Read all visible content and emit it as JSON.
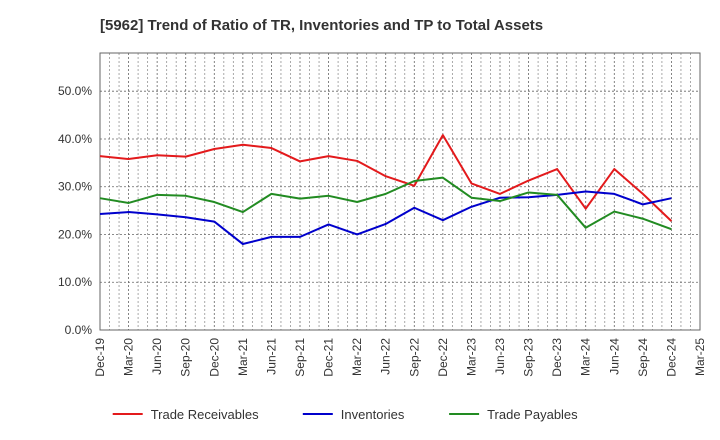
{
  "chart_data": {
    "type": "line",
    "title": "[5962]  Trend of Ratio of TR, Inventories and TP to Total Assets",
    "xlabel": "",
    "ylabel": "",
    "ylim": [
      0,
      0.58
    ],
    "yticks": [
      0,
      0.1,
      0.2,
      0.3,
      0.4,
      0.5
    ],
    "ytick_labels": [
      "0.0%",
      "10.0%",
      "20.0%",
      "30.0%",
      "40.0%",
      "50.0%"
    ],
    "categories": [
      "Dec-19",
      "Mar-20",
      "Jun-20",
      "Sep-20",
      "Dec-20",
      "Mar-21",
      "Jun-21",
      "Sep-21",
      "Dec-21",
      "Mar-22",
      "Jun-22",
      "Sep-22",
      "Dec-22",
      "Mar-23",
      "Jun-23",
      "Sep-23",
      "Dec-23",
      "Mar-24",
      "Jun-24",
      "Sep-24",
      "Dec-24",
      "Mar-25"
    ],
    "grid": true,
    "legend_position": "bottom",
    "series": [
      {
        "name": "Trade Receivables",
        "color": "#e31a1c",
        "values": [
          0.364,
          0.358,
          0.366,
          0.363,
          0.379,
          0.388,
          0.381,
          0.353,
          0.364,
          0.354,
          0.322,
          0.302,
          0.408,
          0.307,
          0.285,
          0.313,
          0.337,
          0.254,
          0.337,
          0.285,
          0.228,
          null
        ]
      },
      {
        "name": "Inventories",
        "color": "#0000cc",
        "values": [
          0.243,
          0.247,
          0.242,
          0.236,
          0.227,
          0.18,
          0.195,
          0.195,
          0.221,
          0.2,
          0.222,
          0.256,
          0.23,
          0.258,
          0.277,
          0.278,
          0.283,
          0.29,
          0.285,
          0.263,
          0.276,
          null
        ]
      },
      {
        "name": "Trade Payables",
        "color": "#228b22",
        "values": [
          0.276,
          0.266,
          0.283,
          0.281,
          0.268,
          0.247,
          0.285,
          0.275,
          0.281,
          0.268,
          0.285,
          0.312,
          0.319,
          0.277,
          0.27,
          0.288,
          0.283,
          0.214,
          0.248,
          0.233,
          0.211,
          null
        ]
      }
    ]
  }
}
